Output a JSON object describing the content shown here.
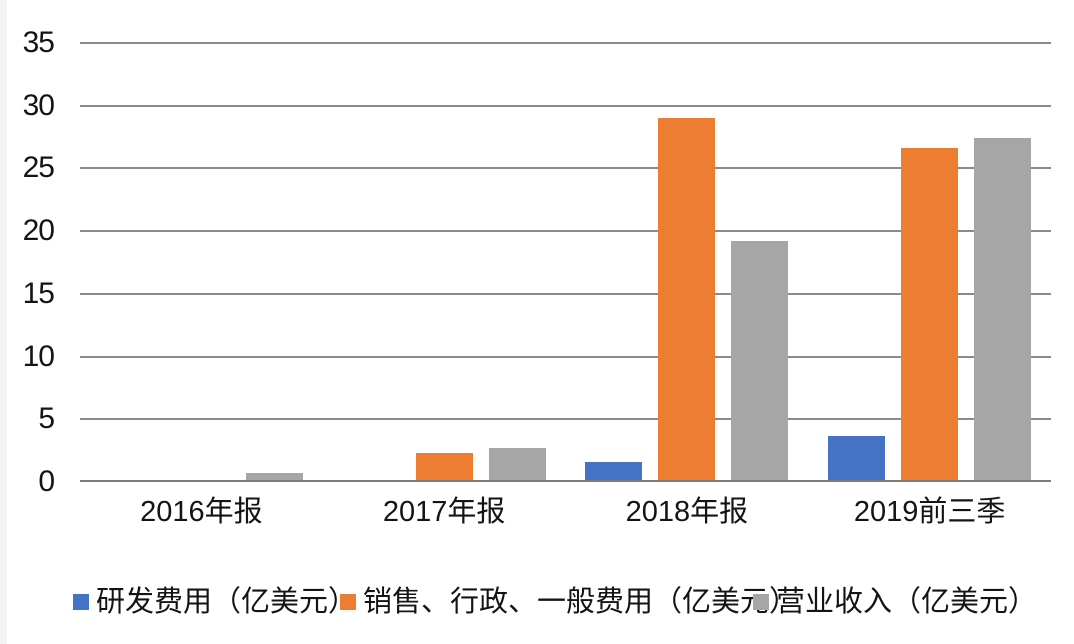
{
  "chart_data": {
    "type": "bar",
    "title": "",
    "categories": [
      "2016年报",
      "2017年报",
      "2018年报",
      "2019前三季"
    ],
    "series": [
      {
        "name": "研发费用（亿美元）",
        "color": "#4472C4",
        "values": [
          0.2,
          0.2,
          1.6,
          3.7
        ]
      },
      {
        "name": "销售、行政、一般费用（亿美元）",
        "color": "#ED7D31",
        "values": [
          0.2,
          2.3,
          29.0,
          26.6
        ]
      },
      {
        "name": "营业收入（亿美元）",
        "color": "#A6A6A6",
        "values": [
          0.7,
          2.7,
          19.2,
          27.4
        ]
      }
    ],
    "ylim": [
      0,
      35
    ],
    "yticks": [
      0,
      5,
      10,
      15,
      20,
      25,
      30,
      35
    ],
    "grid": true,
    "legend_position": "bottom"
  },
  "colors": {
    "background": "#ffffff",
    "gridline": "#8a8a8a",
    "axis_line": "#7c7c7c",
    "text": "#141414"
  }
}
